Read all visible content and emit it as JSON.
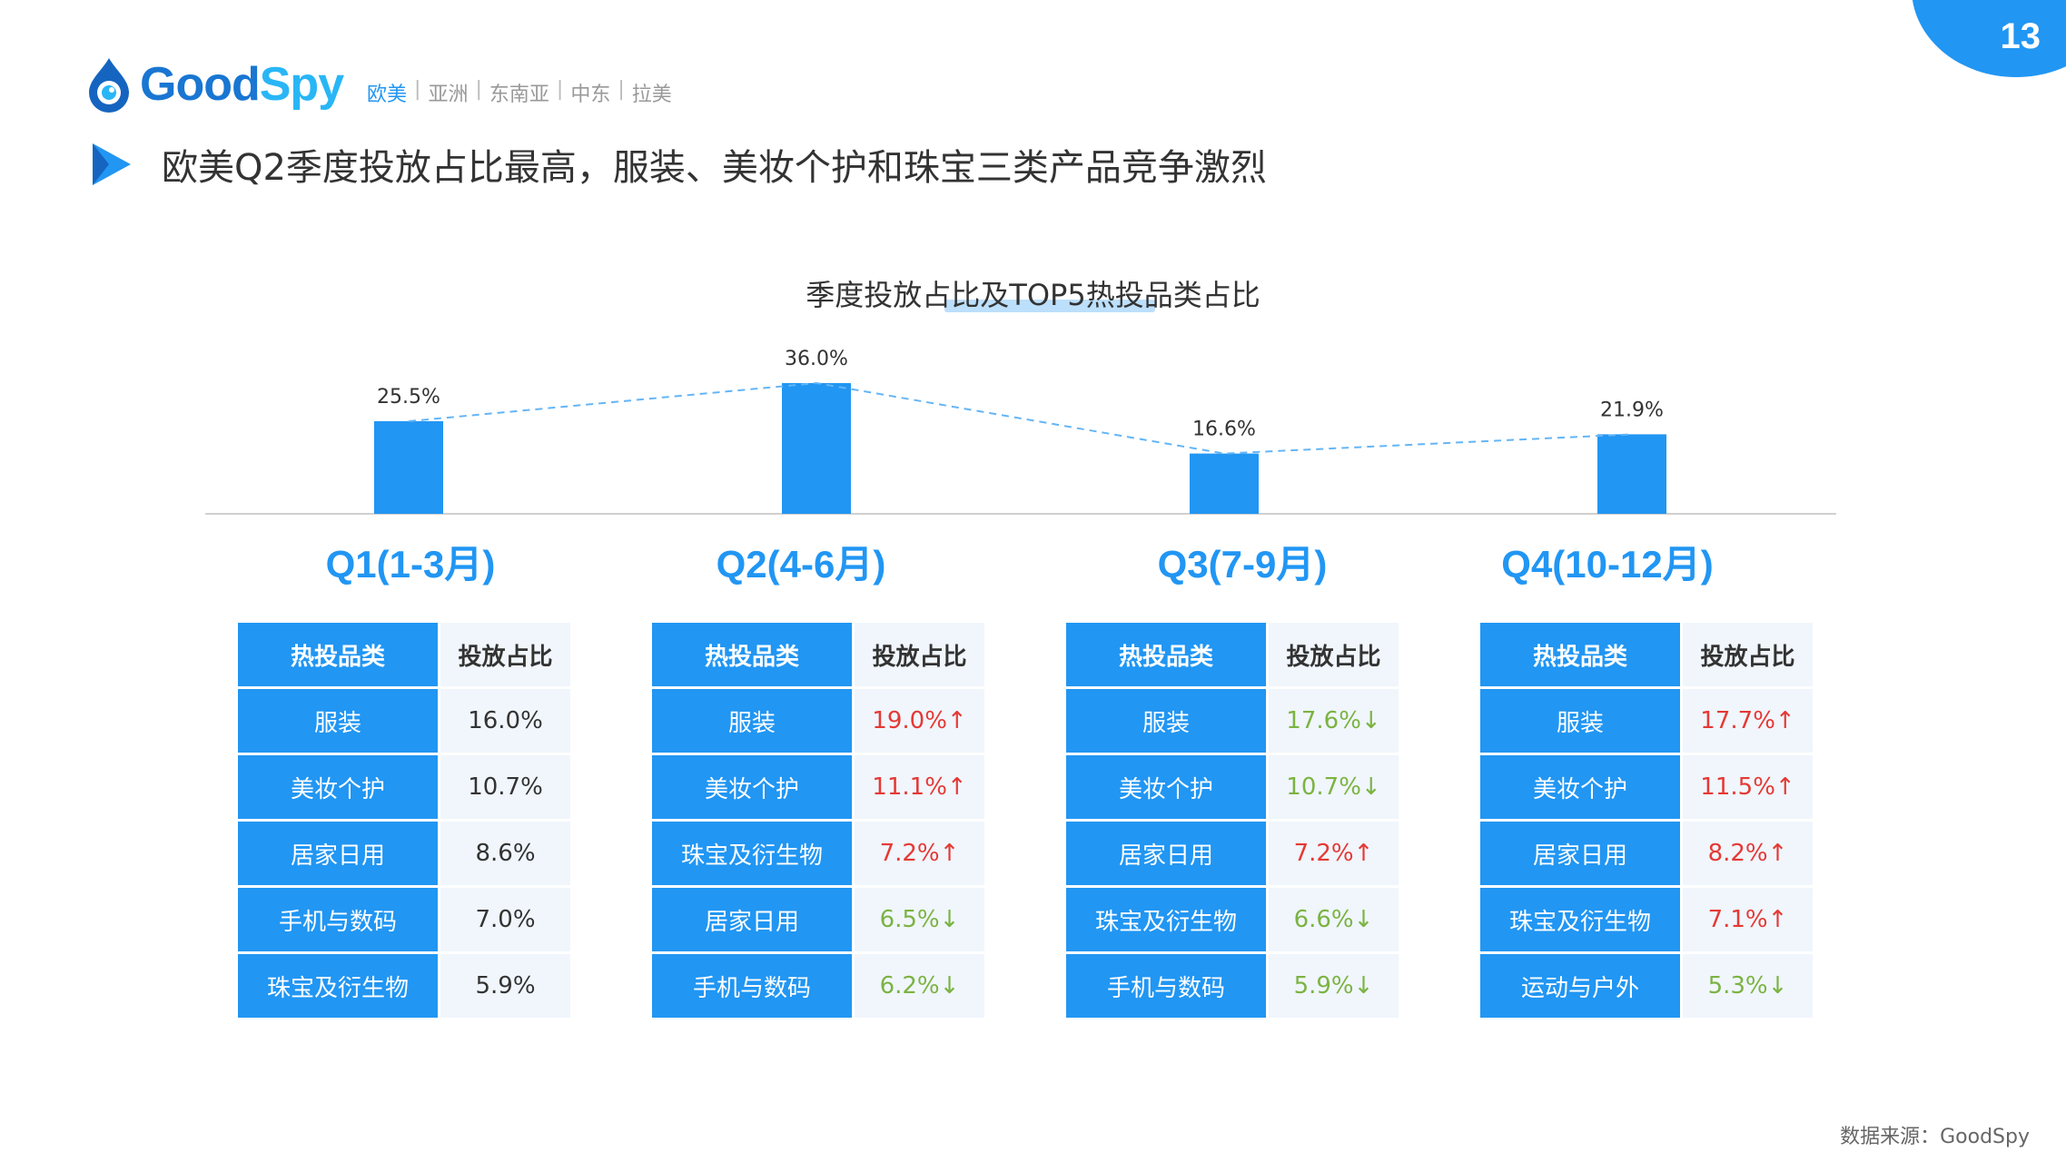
{
  "page": {
    "number": "13"
  },
  "logo": {
    "text_good": "Good",
    "text_spy": "Spy"
  },
  "regions": [
    {
      "label": "欧美",
      "active": true
    },
    {
      "label": "亚洲",
      "active": false
    },
    {
      "label": "东南亚",
      "active": false
    },
    {
      "label": "中东",
      "active": false
    },
    {
      "label": "拉美",
      "active": false
    }
  ],
  "headline": "欧美Q2季度投放占比最高，服装、美妆个护和珠宝三类产品竞争激烈",
  "colors": {
    "accent": "#2196f3",
    "up": "#e53935",
    "down": "#7cb342",
    "cell_bg": "#f0f6fc"
  },
  "chart_data": {
    "type": "bar",
    "title": "季度投放占比及TOP5热投品类占比",
    "categories": [
      "Q1(1-3月)",
      "Q2(4-6月)",
      "Q3(7-9月)",
      "Q4(10-12月)"
    ],
    "values": [
      25.5,
      36.0,
      16.6,
      21.9
    ],
    "data_labels": [
      "25.5%",
      "36.0%",
      "16.6%",
      "21.9%"
    ],
    "unit": "%",
    "trend_line": true,
    "ylim": [
      0,
      36
    ]
  },
  "tables": [
    {
      "header": [
        "热投品类",
        "投放占比"
      ],
      "rows": [
        {
          "category": "服装",
          "share": "16.0%",
          "trend": "none"
        },
        {
          "category": "美妆个护",
          "share": "10.7%",
          "trend": "none"
        },
        {
          "category": "居家日用",
          "share": "8.6%",
          "trend": "none"
        },
        {
          "category": "手机与数码",
          "share": "7.0%",
          "trend": "none"
        },
        {
          "category": "珠宝及衍生物",
          "share": "5.9%",
          "trend": "none"
        }
      ]
    },
    {
      "header": [
        "热投品类",
        "投放占比"
      ],
      "rows": [
        {
          "category": "服装",
          "share": "19.0%↑",
          "trend": "up"
        },
        {
          "category": "美妆个护",
          "share": "11.1%↑",
          "trend": "up"
        },
        {
          "category": "珠宝及衍生物",
          "share": "7.2%↑",
          "trend": "up"
        },
        {
          "category": "居家日用",
          "share": "6.5%↓",
          "trend": "down"
        },
        {
          "category": "手机与数码",
          "share": "6.2%↓",
          "trend": "down"
        }
      ]
    },
    {
      "header": [
        "热投品类",
        "投放占比"
      ],
      "rows": [
        {
          "category": "服装",
          "share": "17.6%↓",
          "trend": "down"
        },
        {
          "category": "美妆个护",
          "share": "10.7%↓",
          "trend": "down"
        },
        {
          "category": "居家日用",
          "share": "7.2%↑",
          "trend": "up"
        },
        {
          "category": "珠宝及衍生物",
          "share": "6.6%↓",
          "trend": "down"
        },
        {
          "category": "手机与数码",
          "share": "5.9%↓",
          "trend": "down"
        }
      ]
    },
    {
      "header": [
        "热投品类",
        "投放占比"
      ],
      "rows": [
        {
          "category": "服装",
          "share": "17.7%↑",
          "trend": "up"
        },
        {
          "category": "美妆个护",
          "share": "11.5%↑",
          "trend": "up"
        },
        {
          "category": "居家日用",
          "share": "8.2%↑",
          "trend": "up"
        },
        {
          "category": "珠宝及衍生物",
          "share": "7.1%↑",
          "trend": "up"
        },
        {
          "category": "运动与户外",
          "share": "5.3%↓",
          "trend": "down"
        }
      ]
    }
  ],
  "source": "数据来源：GoodSpy"
}
